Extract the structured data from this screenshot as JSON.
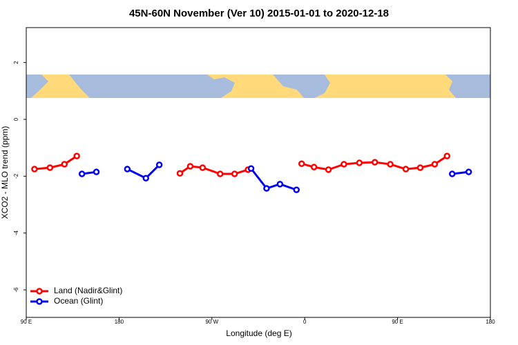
{
  "chart_data": {
    "type": "line",
    "title": "45N-60N November (Ver 10)   2015-01-01 to 2020-12-18",
    "x_label": "Longitude (deg E)",
    "y_label": "XCO2 - MLO trend (ppm)",
    "xlim": [
      90,
      540
    ],
    "ylim": [
      -6.97,
      3.23
    ],
    "xticks": [
      {
        "value": 90,
        "label": "90 E"
      },
      180,
      {
        "value": 270,
        "label": "90 W"
      },
      {
        "value": 360,
        "label": "0"
      },
      {
        "value": 450,
        "label": "90 E"
      },
      {
        "value": 540,
        "label": "180"
      }
    ],
    "yticks": [
      -6,
      -4,
      -2,
      0,
      2
    ],
    "legend": "bottom-left",
    "series": [
      {
        "name": "Land (Nadir&Glint)",
        "color": "#ff0000",
        "x": [
          98,
          113,
          127,
          139,
          null,
          239,
          249,
          261,
          278,
          292,
          305,
          null,
          357,
          369,
          383,
          398,
          413,
          428,
          443,
          458,
          472,
          486,
          498
        ],
        "values": [
          -1.75,
          -1.7,
          -1.58,
          -1.29,
          null,
          -1.9,
          -1.65,
          -1.7,
          -1.92,
          -1.92,
          -1.77,
          null,
          -1.56,
          -1.68,
          -1.77,
          -1.58,
          -1.53,
          -1.51,
          -1.58,
          -1.75,
          -1.7,
          -1.58,
          -1.29
        ]
      },
      {
        "name": "Ocean (Glint)",
        "color": "#0000ee",
        "x": [
          144,
          158,
          null,
          188,
          206,
          219,
          null,
          308,
          323,
          336,
          352,
          null,
          503,
          519
        ],
        "values": [
          -1.92,
          -1.85,
          null,
          -1.75,
          -2.07,
          -1.6,
          null,
          -1.73,
          -2.43,
          -2.28,
          -2.48,
          null,
          -1.92,
          -1.85
        ]
      }
    ]
  }
}
